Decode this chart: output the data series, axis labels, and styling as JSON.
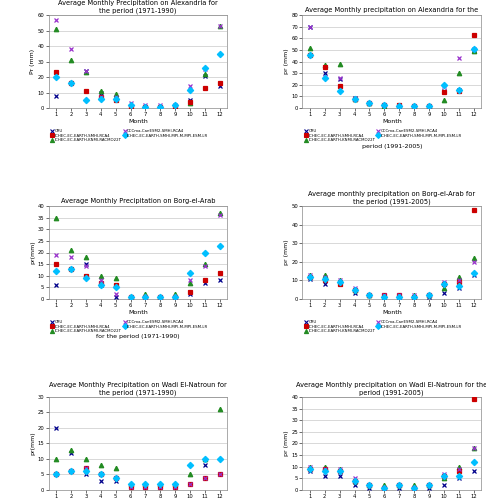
{
  "months": [
    1,
    2,
    3,
    4,
    5,
    6,
    7,
    8,
    9,
    10,
    11,
    12
  ],
  "panels": [
    {
      "title": "Average Monthly Precipitation on Alexandria for\nthe period (1971-1990)",
      "ylabel": "Pr (mm)",
      "ylim": [
        0,
        60
      ],
      "yticks": [
        0,
        10,
        20,
        30,
        40,
        50,
        60
      ],
      "extra_text": null,
      "series": {
        "CRU": [
          8,
          16,
          24,
          10,
          6,
          1,
          1,
          1,
          1,
          5,
          21,
          14
        ],
        "RACMO22T": [
          51,
          31,
          23,
          11,
          9,
          1,
          1,
          1,
          1,
          3,
          22,
          53
        ],
        "SMHI-RCA4": [
          23,
          16,
          11,
          7,
          5,
          1,
          1,
          1,
          1,
          4,
          13,
          16
        ],
        "CCCma": [
          57,
          38,
          24,
          7,
          7,
          3,
          2,
          2,
          2,
          14,
          25,
          53
        ],
        "MPI-ESM-LR": [
          20,
          16,
          5,
          6,
          6,
          2,
          1,
          1,
          2,
          12,
          26,
          35
        ]
      }
    },
    {
      "title": "Average Monthly precipitation on Alexandria for the",
      "ylabel": "pr (mm)",
      "ylim": [
        0,
        80
      ],
      "yticks": [
        0,
        10,
        20,
        30,
        40,
        50,
        60,
        70,
        80
      ],
      "extra_text": "period (1991-2005)",
      "series": {
        "CRU": [
          70,
          30,
          25,
          9,
          4,
          3,
          2,
          2,
          2,
          15,
          16,
          50
        ],
        "RACMO22T": [
          52,
          37,
          38,
          8,
          4,
          2,
          3,
          2,
          2,
          7,
          30,
          49
        ],
        "SMHI-RCA4": [
          46,
          35,
          19,
          8,
          4,
          3,
          3,
          2,
          2,
          14,
          15,
          63
        ],
        "CCCma": [
          70,
          27,
          26,
          8,
          4,
          3,
          2,
          2,
          2,
          19,
          43,
          51
        ],
        "MPI-ESM-LR": [
          46,
          26,
          15,
          8,
          4,
          3,
          2,
          2,
          2,
          20,
          16,
          51
        ]
      }
    },
    {
      "title": "Average Monthly Precipitation on Borg-el-Arab",
      "ylabel": "pr(mm)",
      "ylim": [
        0,
        40
      ],
      "yticks": [
        0,
        5,
        10,
        15,
        20,
        25,
        30,
        35,
        40
      ],
      "extra_text": "for the period (1971-1990)",
      "series": {
        "CRU": [
          6,
          13,
          15,
          6,
          1,
          1,
          1,
          1,
          1,
          2,
          7,
          8
        ],
        "RACMO22T": [
          35,
          21,
          18,
          10,
          9,
          1,
          2,
          1,
          2,
          7,
          15,
          37
        ],
        "SMHI-RCA4": [
          15,
          13,
          10,
          7,
          6,
          1,
          1,
          1,
          1,
          3,
          8,
          11
        ],
        "CCCma": [
          19,
          18,
          14,
          8,
          2,
          1,
          1,
          1,
          1,
          8,
          14,
          36
        ],
        "MPI-ESM-LR": [
          12,
          13,
          9,
          6,
          5,
          1,
          1,
          1,
          1,
          11,
          20,
          23
        ]
      }
    },
    {
      "title": "Average monthly precipitation on Borg-el-Arab for\nthe period (1991-2005)",
      "ylabel": "pr (mm)",
      "ylim": [
        0,
        50
      ],
      "yticks": [
        0,
        10,
        20,
        30,
        40,
        50
      ],
      "extra_text": null,
      "series": {
        "CRU": [
          11,
          8,
          9,
          3,
          2,
          1,
          1,
          1,
          1,
          3,
          6,
          13
        ],
        "RACMO22T": [
          13,
          13,
          10,
          5,
          2,
          2,
          2,
          2,
          2,
          6,
          12,
          22
        ],
        "SMHI-RCA4": [
          12,
          10,
          8,
          5,
          2,
          2,
          2,
          1,
          2,
          8,
          9,
          48
        ],
        "CCCma": [
          13,
          12,
          10,
          6,
          2,
          2,
          2,
          2,
          2,
          9,
          10,
          20
        ],
        "MPI-ESM-LR": [
          12,
          11,
          9,
          5,
          2,
          1,
          1,
          1,
          2,
          8,
          7,
          14
        ]
      }
    },
    {
      "title": "Average Monthly Precipitation on Wadi El-Natroun for\nthe period (1971-1990)",
      "ylabel": "pr(mm)",
      "ylim": [
        0,
        30
      ],
      "yticks": [
        0,
        5,
        10,
        15,
        20,
        25,
        30
      ],
      "extra_text": null,
      "series": {
        "CRU": [
          20,
          12,
          5,
          3,
          3,
          1,
          1,
          1,
          1,
          2,
          8,
          5
        ],
        "RACMO22T": [
          10,
          13,
          10,
          8,
          7,
          2,
          2,
          2,
          2,
          5,
          10,
          26
        ],
        "SMHI-RCA4": [
          5,
          6,
          7,
          5,
          4,
          1,
          1,
          1,
          1,
          2,
          4,
          5
        ],
        "CCCma": [
          5,
          6,
          7,
          5,
          4,
          1,
          1,
          1,
          1,
          2,
          4,
          5
        ],
        "MPI-ESM-LR": [
          5,
          6,
          6,
          5,
          4,
          2,
          2,
          2,
          2,
          8,
          10,
          10
        ]
      }
    },
    {
      "title": "Average Monthly precipitation on Wadi El-Natroun for the\nperiod (1991-2005)",
      "ylabel": "pr (mm)",
      "ylim": [
        0,
        40
      ],
      "yticks": [
        0,
        5,
        10,
        15,
        20,
        25,
        30,
        35,
        40
      ],
      "extra_text": null,
      "series": {
        "CRU": [
          8,
          6,
          6,
          2,
          1,
          1,
          1,
          1,
          1,
          2,
          5,
          8
        ],
        "RACMO22T": [
          10,
          10,
          9,
          4,
          2,
          2,
          2,
          2,
          2,
          5,
          10,
          18
        ],
        "SMHI-RCA4": [
          9,
          9,
          8,
          4,
          2,
          1,
          2,
          1,
          2,
          6,
          8,
          39
        ],
        "CCCma": [
          10,
          9,
          9,
          5,
          2,
          1,
          2,
          1,
          2,
          7,
          9,
          18
        ],
        "MPI-ESM-LR": [
          9,
          8,
          8,
          4,
          2,
          1,
          2,
          1,
          2,
          6,
          6,
          12
        ]
      }
    }
  ],
  "series_styles": {
    "CRU": {
      "color": "#00008B",
      "marker": "x",
      "label": "CRU"
    },
    "RACMO22T": {
      "color": "#228B22",
      "marker": "^",
      "label": "ICHEC-EC-EARTH-KNMI-RACMO22T"
    },
    "SMHI-RCA4": {
      "color": "#CC0000",
      "marker": "s",
      "label": "ICHEC-EC-EARTH-SMHI-RCA4"
    },
    "CCCma": {
      "color": "#9932CC",
      "marker": "x",
      "label": "CCCma-CanESM2-SMHI-RCA4"
    },
    "MPI-ESM-LR": {
      "color": "#00BFFF",
      "marker": "D",
      "label": "ICHEC-EC-EARTH-SMHI-MPI-M-MPI-ESM-LR"
    }
  },
  "background_color": "#FFFFFF",
  "grid_color": "#BBBBBB"
}
